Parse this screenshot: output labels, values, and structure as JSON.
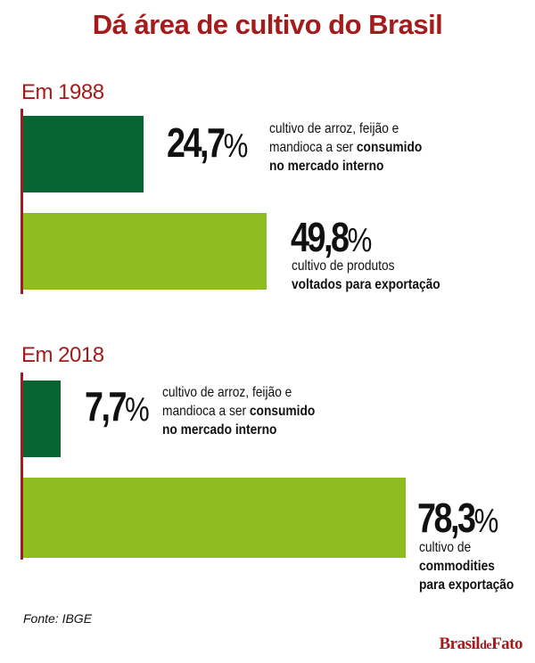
{
  "chart_data": {
    "type": "bar",
    "orientation": "horizontal",
    "title": "Dá área de cultivo do Brasil",
    "unit": "%",
    "xlim": [
      0,
      100
    ],
    "groups": [
      {
        "label": "Em 1988",
        "bars": [
          {
            "value": 24.7,
            "value_label": "24,7",
            "color": "#076433",
            "desc_normal": "cultivo de arroz, feijão e mandioca a ser ",
            "desc_bold": "consumido no mercado interno",
            "lines": [
              "cultivo de arroz, feijão e",
              "mandioca a ser ",
              "consumido",
              "no mercado interno"
            ]
          },
          {
            "value": 49.8,
            "value_label": "49,8",
            "color": "#8fbd1f",
            "lines": [
              "cultivo de produtos",
              "voltados para exportação"
            ]
          }
        ]
      },
      {
        "label": "Em 2018",
        "bars": [
          {
            "value": 7.7,
            "value_label": "7,7",
            "color": "#076433",
            "lines": [
              "cultivo de arroz, feijão e",
              "mandioca a ser ",
              "consumido",
              "no mercado interno"
            ]
          },
          {
            "value": 78.3,
            "value_label": "78,3",
            "color": "#8fbd1f",
            "lines": [
              "cultivo de",
              "commodities",
              "para exportação"
            ]
          }
        ]
      }
    ],
    "source": "Fonte: IBGE"
  },
  "logo": {
    "brasil": "Brasil",
    "de": "de",
    "fato": "Fato"
  },
  "percent_sign": "%"
}
